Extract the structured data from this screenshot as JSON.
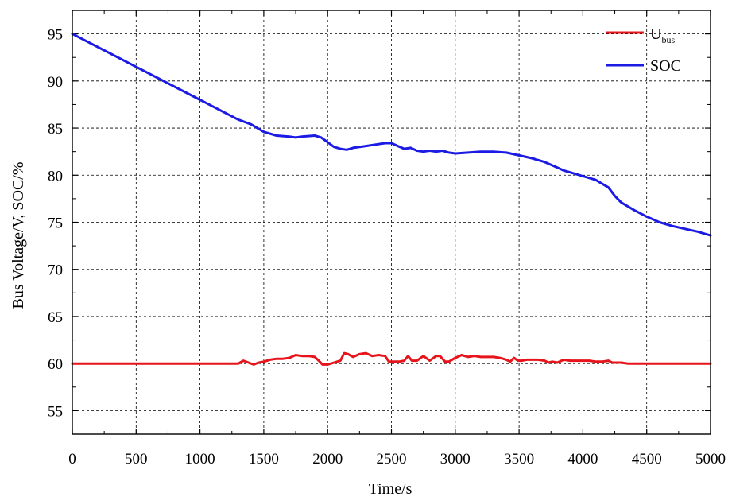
{
  "chart_data": {
    "type": "line",
    "xlabel": "Time/s",
    "ylabel": "Bus Voltage/V, SOC/%",
    "xlim": [
      0,
      5000
    ],
    "ylim": [
      52.5,
      97.5
    ],
    "xticks": [
      0,
      500,
      1000,
      1500,
      2000,
      2500,
      3000,
      3500,
      4000,
      4500,
      5000
    ],
    "yticks": [
      55,
      60,
      65,
      70,
      75,
      80,
      85,
      90,
      95
    ],
    "grid": true,
    "legend_position": "top-right",
    "series": [
      {
        "name": "U",
        "name_subscript": "bus",
        "color": "#e8141b",
        "x": [
          0,
          1300,
          1340,
          1380,
          1420,
          1460,
          1500,
          1550,
          1600,
          1650,
          1700,
          1750,
          1800,
          1850,
          1900,
          1930,
          1960,
          2000,
          2050,
          2100,
          2130,
          2160,
          2200,
          2250,
          2300,
          2350,
          2400,
          2450,
          2480,
          2520,
          2560,
          2600,
          2630,
          2660,
          2700,
          2750,
          2800,
          2850,
          2880,
          2920,
          2950,
          3000,
          3050,
          3100,
          3150,
          3200,
          3250,
          3300,
          3350,
          3400,
          3430,
          3460,
          3490,
          3520,
          3560,
          3600,
          3650,
          3700,
          3730,
          3760,
          3800,
          3850,
          3900,
          3950,
          4000,
          4050,
          4100,
          4150,
          4200,
          4230,
          4260,
          4300,
          4350,
          4400,
          4500,
          5000
        ],
        "values": [
          60.0,
          60.0,
          60.3,
          60.1,
          59.9,
          60.1,
          60.2,
          60.4,
          60.5,
          60.5,
          60.6,
          60.9,
          60.8,
          60.8,
          60.7,
          60.3,
          59.9,
          59.9,
          60.1,
          60.3,
          61.1,
          61.0,
          60.7,
          61.0,
          61.1,
          60.8,
          60.9,
          60.8,
          60.2,
          60.2,
          60.2,
          60.3,
          60.8,
          60.3,
          60.3,
          60.8,
          60.3,
          60.8,
          60.8,
          60.2,
          60.2,
          60.6,
          60.9,
          60.7,
          60.8,
          60.7,
          60.7,
          60.7,
          60.6,
          60.4,
          60.2,
          60.6,
          60.3,
          60.3,
          60.4,
          60.4,
          60.4,
          60.3,
          60.1,
          60.2,
          60.1,
          60.4,
          60.3,
          60.3,
          60.3,
          60.3,
          60.2,
          60.2,
          60.3,
          60.1,
          60.1,
          60.1,
          60.0,
          60.0,
          60.0,
          60.0
        ]
      },
      {
        "name": "SOC",
        "color": "#1c1be4",
        "x": [
          0,
          500,
          1000,
          1300,
          1400,
          1500,
          1600,
          1700,
          1750,
          1800,
          1900,
          1950,
          2000,
          2050,
          2100,
          2150,
          2200,
          2300,
          2400,
          2450,
          2500,
          2550,
          2600,
          2650,
          2700,
          2750,
          2800,
          2850,
          2900,
          2950,
          3000,
          3100,
          3200,
          3300,
          3400,
          3500,
          3600,
          3700,
          3800,
          3850,
          3900,
          3950,
          4000,
          4100,
          4200,
          4250,
          4300,
          4400,
          4500,
          4600,
          4700,
          4800,
          4900,
          5000
        ],
        "values": [
          95.0,
          91.5,
          88.0,
          85.9,
          85.4,
          84.6,
          84.2,
          84.1,
          84.0,
          84.1,
          84.2,
          84.0,
          83.5,
          83.0,
          82.8,
          82.7,
          82.9,
          83.1,
          83.3,
          83.4,
          83.4,
          83.1,
          82.8,
          82.9,
          82.6,
          82.5,
          82.6,
          82.5,
          82.6,
          82.4,
          82.3,
          82.4,
          82.5,
          82.5,
          82.4,
          82.1,
          81.8,
          81.4,
          80.8,
          80.5,
          80.3,
          80.1,
          79.9,
          79.5,
          78.7,
          77.8,
          77.1,
          76.3,
          75.6,
          75.0,
          74.6,
          74.3,
          74.0,
          73.6
        ]
      }
    ]
  }
}
